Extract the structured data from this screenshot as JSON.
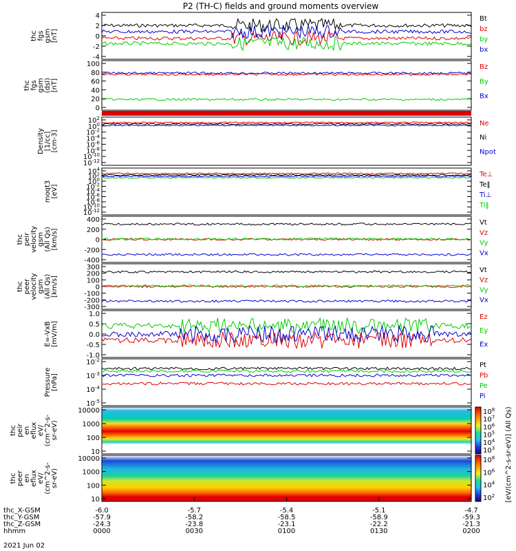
{
  "title": "P2 (TH-C) fields and ground moments overview",
  "date_label": "2021 Jun 02",
  "colors": {
    "black": "#000000",
    "red": "#dd0000",
    "green": "#00cc00",
    "blue": "#0000cc"
  },
  "xaxis": {
    "rows": [
      {
        "label": "thc_X-GSM",
        "values": [
          "-6.0",
          "-5.7",
          "-5.4",
          "-5.1",
          "-4.7"
        ]
      },
      {
        "label": "thc_Y-GSM",
        "values": [
          "-57.9",
          "-58.2",
          "-58.5",
          "-58.9",
          "-59.3"
        ]
      },
      {
        "label": "thc_Z-GSM",
        "values": [
          "-24.3",
          "-23.8",
          "-23.1",
          "-22.2",
          "-21.3"
        ]
      },
      {
        "label": "hhmm",
        "values": [
          "0000",
          "0030",
          "0100",
          "0130",
          "0200"
        ]
      }
    ]
  },
  "chart_data": [
    {
      "type": "line",
      "ylabel": [
        "thc",
        "fgs",
        "gsm",
        "[nT]"
      ],
      "yticks": [
        "4",
        "2",
        "0",
        "-2",
        "-4"
      ],
      "ylim": [
        -4,
        4
      ],
      "series": [
        {
          "name": "Bt",
          "color": "black",
          "approx_level": 2.0
        },
        {
          "name": "bz",
          "color": "red",
          "approx_level": -0.5
        },
        {
          "name": "by",
          "color": "green",
          "approx_level": -1.5
        },
        {
          "name": "bx",
          "color": "blue",
          "approx_level": 0.8
        }
      ]
    },
    {
      "type": "line",
      "ylabel": [
        "thc",
        "fgs",
        "gsm",
        "(dsl)",
        "[nT]"
      ],
      "yticks": [
        "100",
        "80",
        "60",
        "40",
        "20",
        "0"
      ],
      "ylim": [
        0,
        100
      ],
      "series": [
        {
          "name": "Bz",
          "color": "red",
          "approx_level": 75
        },
        {
          "name": "By",
          "color": "green",
          "approx_level": 18
        },
        {
          "name": "Bx",
          "color": "blue",
          "approx_level": 78
        }
      ]
    },
    {
      "type": "line",
      "ylabel": [
        "Density",
        "[1/cc]",
        "[cm-3]"
      ],
      "yticks": [
        "10^2",
        "10^0",
        "10^-2",
        "10^-4",
        "10^-6",
        "10^-8",
        "10^-10",
        "10^-12"
      ],
      "yscale": "log",
      "series": [
        {
          "name": "Ne",
          "color": "red"
        },
        {
          "name": "Ni",
          "color": "black"
        },
        {
          "name": "Npot",
          "color": "blue"
        }
      ]
    },
    {
      "type": "line",
      "ylabel": [
        "moqt3",
        "[eV]"
      ],
      "yticks": [
        "10^4",
        "10^2",
        "10^0",
        "10^-2",
        "10^-4",
        "10^-6",
        "10^-8",
        "10^-10",
        "10^-12"
      ],
      "yscale": "log",
      "series": [
        {
          "name": "Te⊥",
          "color": "red"
        },
        {
          "name": "Te‖",
          "color": "black"
        },
        {
          "name": "Ti⊥",
          "color": "blue"
        },
        {
          "name": "Ti‖",
          "color": "green"
        }
      ]
    },
    {
      "type": "line",
      "ylabel": [
        "thc",
        "peir",
        "velocity",
        "gsm",
        "(All Qs)",
        "[km/s]"
      ],
      "yticks": [
        "400",
        "200",
        "0",
        "-200",
        "-400"
      ],
      "ylim": [
        -400,
        400
      ],
      "series": [
        {
          "name": "Vt",
          "color": "black",
          "approx_level": 300
        },
        {
          "name": "Vz",
          "color": "red",
          "approx_level": 0
        },
        {
          "name": "Vy",
          "color": "green",
          "approx_level": 5
        },
        {
          "name": "Vx",
          "color": "blue",
          "approx_level": -300
        }
      ]
    },
    {
      "type": "line",
      "ylabel": [
        "thc",
        "peer",
        "velocity",
        "gsm",
        "(All Qs)",
        "[km/s]"
      ],
      "yticks": [
        "300",
        "200",
        "100",
        "0",
        "-100",
        "-200",
        "-300"
      ],
      "ylim": [
        -300,
        300
      ],
      "series": [
        {
          "name": "Vt",
          "color": "black",
          "approx_level": 220
        },
        {
          "name": "Vz",
          "color": "red",
          "approx_level": 0
        },
        {
          "name": "Vy",
          "color": "green",
          "approx_level": 10
        },
        {
          "name": "Vx",
          "color": "blue",
          "approx_level": -220
        }
      ]
    },
    {
      "type": "line",
      "ylabel": [
        "E=-VxB",
        "[mV/m]"
      ],
      "yticks": [
        "1.0",
        "0.5",
        "0.0",
        "-0.5",
        "-1.0"
      ],
      "ylim": [
        -1,
        1
      ],
      "series": [
        {
          "name": "Ez",
          "color": "red",
          "approx_level": -0.3
        },
        {
          "name": "Ey",
          "color": "green",
          "approx_level": 0.4
        },
        {
          "name": "Ex",
          "color": "blue",
          "approx_level": 0.0
        }
      ]
    },
    {
      "type": "line",
      "ylabel": [
        "Pressure",
        "[nPa]"
      ],
      "yticks": [
        "10^-2",
        "10^-3",
        "10^-4",
        "10^-5"
      ],
      "yscale": "log",
      "series": [
        {
          "name": "Pt",
          "color": "black"
        },
        {
          "name": "Pb",
          "color": "red"
        },
        {
          "name": "Pe",
          "color": "green"
        },
        {
          "name": "Pi",
          "color": "blue"
        }
      ]
    },
    {
      "type": "heatmap",
      "ylabel": [
        "thc",
        "peir",
        "en",
        "eflux",
        "eV/",
        "(cm^2-s-",
        "sr-eV)"
      ],
      "yticks": [
        "10000",
        "1000",
        "100",
        "10"
      ],
      "yscale": "log"
    },
    {
      "type": "heatmap",
      "ylabel": [
        "thc",
        "peer",
        "en",
        "eflux",
        "eV/",
        "(cm^2-s-",
        "sr-eV)"
      ],
      "yticks": [
        "10000",
        "1000",
        "100",
        "10"
      ],
      "yscale": "log"
    }
  ],
  "colorbars": [
    {
      "ticks": [
        "10^8",
        "10^7",
        "10^6",
        "10^5",
        "10^4",
        "10^3"
      ],
      "label": "[eV/(cm^2-s-sr-eV)] (All Qs)"
    },
    {
      "ticks": [
        "10^8",
        "10^6",
        "10^4",
        "10^2"
      ],
      "label": "[eV/(cm^2-s-sr-eV)] (All Qs)"
    }
  ]
}
